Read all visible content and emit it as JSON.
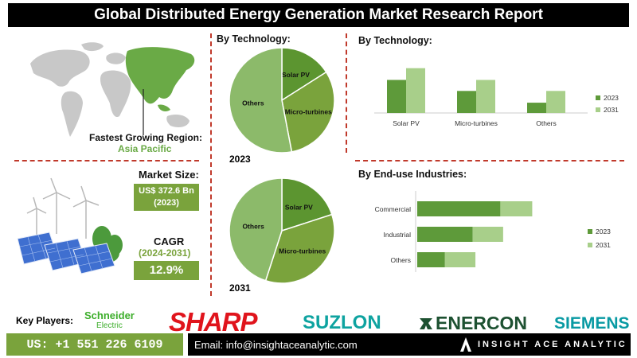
{
  "title": "Global Distributed Energy Generation Market  Research Report",
  "region": {
    "label": "Fastest Growing Region:",
    "value": "Asia Pacific"
  },
  "market_size": {
    "label": "Market Size:",
    "value_line1": "US$ 372.6 Bn",
    "value_line2": "(2023)"
  },
  "cagr": {
    "label": "CAGR",
    "period": "(2024-2031)",
    "value": "12.9%"
  },
  "pie_section": {
    "title": "By Technology:",
    "year1": "2023",
    "year2": "2031"
  },
  "tech_bar": {
    "title": "By Technology:"
  },
  "end_use": {
    "title": "By End-use Industries:"
  },
  "key_players": {
    "label": "Key Players:",
    "schneider": "Schneider",
    "schneider_sub": "Electric",
    "sharp": "SHARP",
    "suzlon": "SUZLON",
    "enercon": "ENERCON",
    "siemens": "SIEMENS"
  },
  "footer": {
    "phone": "US: +1 551 226 6109",
    "email": "Email: info@insightaceanalytic.com",
    "brand": "INSIGHT ACE ANALYTIC"
  },
  "colors": {
    "dark_green": "#5e9a3a",
    "light_green": "#a8cf8a",
    "pie_light": "#8cba6a",
    "pie_dark": "#5c9530",
    "pie_mid": "#7aa33c",
    "accent_red": "#c0392b",
    "box_green": "#7aa33c",
    "map_highlight": "#6aaa46",
    "map_gray": "#c8c8c8"
  },
  "chart_data": [
    {
      "type": "pie",
      "title": "2023",
      "labels": [
        "Solar PV",
        "Micro-turbines",
        "Others"
      ],
      "values": [
        16,
        31,
        53
      ]
    },
    {
      "type": "pie",
      "title": "2031",
      "labels": [
        "Solar PV",
        "Micro-turbines",
        "Others"
      ],
      "values": [
        20,
        35,
        45
      ]
    },
    {
      "type": "bar",
      "orientation": "vertical",
      "categories": [
        "Solar PV",
        "Micro-turbines",
        "Others"
      ],
      "series": [
        {
          "name": "2023",
          "values": [
            45,
            30,
            14
          ]
        },
        {
          "name": "2031",
          "values": [
            61,
            45,
            30
          ]
        }
      ],
      "legend": "right"
    },
    {
      "type": "bar",
      "orientation": "horizontal-stacked",
      "categories": [
        "Commercial",
        "Industrial",
        "Others"
      ],
      "series": [
        {
          "name": "2023",
          "values": [
            60,
            40,
            20
          ]
        },
        {
          "name": "2031",
          "values": [
            83,
            62,
            42
          ]
        }
      ],
      "legend": "right"
    }
  ]
}
